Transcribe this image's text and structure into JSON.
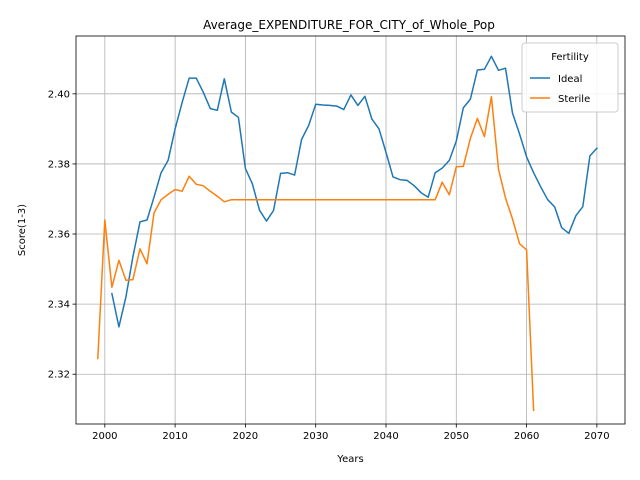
{
  "chart_data": {
    "type": "line",
    "title": "Average_EXPENDITURE_FOR_CITY_of_Whole_Pop",
    "xlabel": "Years",
    "ylabel": "Score(1-3)",
    "xlim": [
      1995.9,
      2074.0
    ],
    "ylim": [
      2.3058,
      2.4165
    ],
    "xticks": [
      2000,
      2010,
      2020,
      2030,
      2040,
      2050,
      2060,
      2070
    ],
    "yticks": [
      2.32,
      2.34,
      2.36,
      2.38,
      2.4
    ],
    "grid": true,
    "legend": {
      "title": "Fertility",
      "placement": "top-right"
    },
    "series": [
      {
        "name": "Ideal",
        "color": "#1f77b4",
        "x": [
          2001,
          2002,
          2003,
          2004,
          2005,
          2006,
          2007,
          2008,
          2009,
          2010,
          2011,
          2012,
          2013,
          2014,
          2015,
          2016,
          2017,
          2018,
          2019,
          2020,
          2021,
          2022,
          2023,
          2024,
          2025,
          2026,
          2027,
          2028,
          2029,
          2030,
          2031,
          2032,
          2033,
          2034,
          2035,
          2036,
          2037,
          2038,
          2039,
          2040,
          2041,
          2042,
          2043,
          2044,
          2045,
          2046,
          2047,
          2048,
          2049,
          2050,
          2051,
          2052,
          2053,
          2054,
          2055,
          2056,
          2057,
          2058,
          2059,
          2060,
          2061,
          2062,
          2063,
          2064,
          2065,
          2066,
          2067,
          2068,
          2069,
          2070
        ],
        "values": [
          2.343,
          2.3335,
          2.342,
          2.3535,
          2.3635,
          2.364,
          2.3705,
          2.3775,
          2.381,
          2.39,
          2.3975,
          2.4045,
          2.4045,
          2.4005,
          2.3958,
          2.3953,
          2.4043,
          2.3948,
          2.3933,
          2.3787,
          2.3743,
          2.3668,
          2.3637,
          2.3667,
          2.3773,
          2.3775,
          2.3768,
          2.387,
          2.391,
          2.397,
          2.3968,
          2.3967,
          2.3965,
          2.3955,
          2.3997,
          2.3967,
          2.3993,
          2.3928,
          2.39,
          2.3833,
          2.3763,
          2.3755,
          2.3753,
          2.3738,
          2.3718,
          2.3705,
          2.3775,
          2.3788,
          2.381,
          2.3865,
          2.396,
          2.3985,
          2.4068,
          2.407,
          2.4107,
          2.4067,
          2.4073,
          2.3945,
          2.3885,
          2.382,
          2.3775,
          2.3735,
          2.3698,
          2.3677,
          2.3618,
          2.3602,
          2.3652,
          2.3678,
          2.3823,
          2.3845
        ]
      },
      {
        "name": "Sterile",
        "color": "#ff7f0e",
        "x": [
          1999,
          2000,
          2001,
          2002,
          2003,
          2004,
          2005,
          2006,
          2007,
          2008,
          2009,
          2010,
          2011,
          2012,
          2013,
          2014,
          2015,
          2016,
          2017,
          2018,
          2019,
          2020,
          2021,
          2022,
          2023,
          2024,
          2025,
          2026,
          2027,
          2028,
          2029,
          2030,
          2031,
          2032,
          2033,
          2034,
          2035,
          2036,
          2037,
          2038,
          2039,
          2040,
          2041,
          2042,
          2043,
          2044,
          2045,
          2046,
          2047,
          2048,
          2049,
          2050,
          2051,
          2052,
          2053,
          2054,
          2055,
          2056,
          2057,
          2058,
          2059,
          2060,
          2061
        ],
        "values": [
          2.3245,
          2.364,
          2.3448,
          2.3525,
          2.3468,
          2.347,
          2.3558,
          2.3515,
          2.366,
          2.3698,
          2.3713,
          2.3727,
          2.3722,
          2.3765,
          2.3742,
          2.3738,
          2.3722,
          2.3708,
          2.3692,
          2.3698,
          2.3698,
          2.3698,
          2.3698,
          2.3698,
          2.3698,
          2.3698,
          2.3698,
          2.3698,
          2.3698,
          2.3698,
          2.3698,
          2.3698,
          2.3698,
          2.3698,
          2.3698,
          2.3698,
          2.3698,
          2.3698,
          2.3698,
          2.3698,
          2.3698,
          2.3698,
          2.3698,
          2.3698,
          2.3698,
          2.3698,
          2.3698,
          2.3698,
          2.3698,
          2.3748,
          2.3712,
          2.3792,
          2.3793,
          2.3873,
          2.393,
          2.3878,
          2.3992,
          2.3785,
          2.3703,
          2.3643,
          2.3572,
          2.3555,
          2.3097
        ]
      }
    ]
  }
}
